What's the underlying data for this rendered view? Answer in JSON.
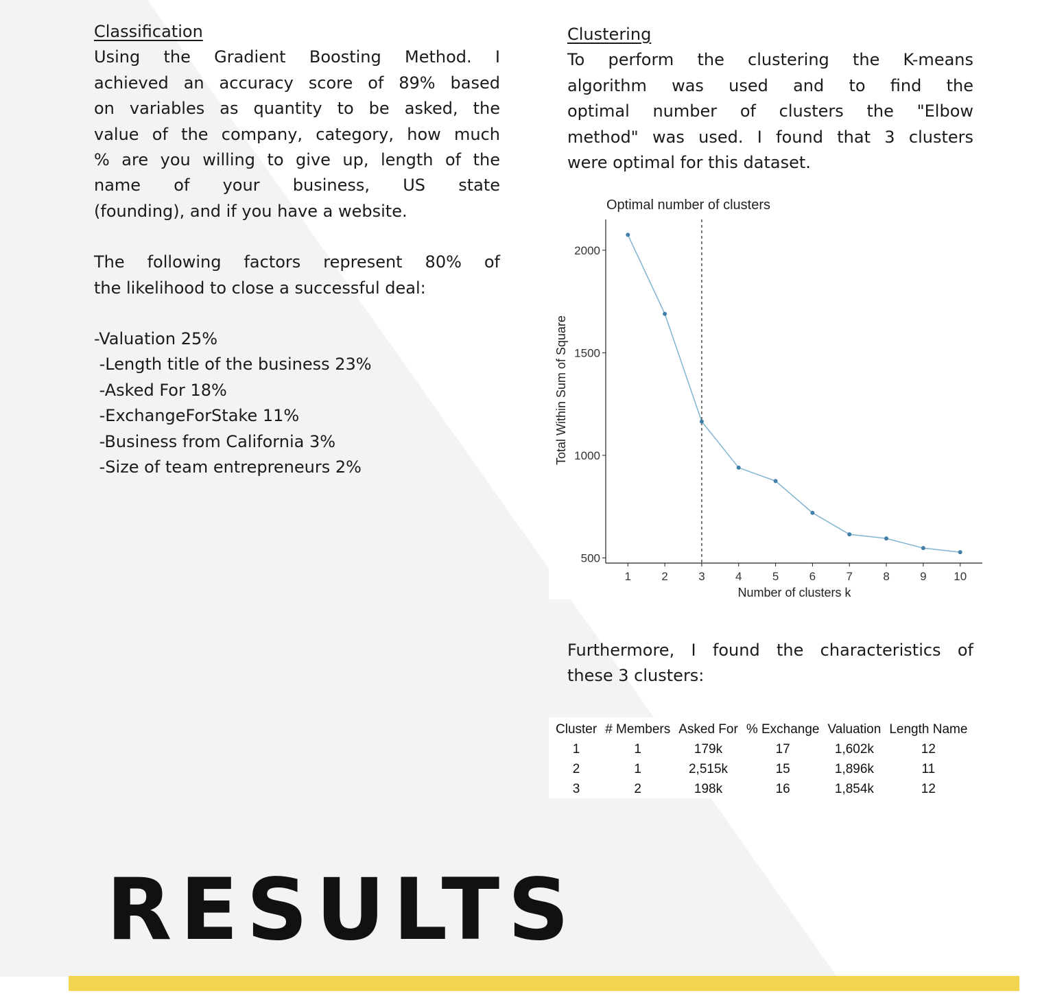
{
  "classification": {
    "heading": "Classification",
    "lines": [
      "Using the Gradient Boosting Method. I",
      "achieved an accuracy score of 89% based",
      "on variables as quantity to be asked, the",
      "value of the company, category, how much",
      "% are you willing to give up, length of the",
      "name of your business, US state"
    ],
    "last_line": "(founding), and if you have a website.",
    "factors_intro_line1": "The following factors  represent 80% of",
    "factors_intro_line2": "the likelihood to close a successful deal:",
    "factors": [
      "-Valuation 25%",
      " -Length title of the business 23%",
      " -Asked For 18%",
      " -ExchangeForStake 11%",
      " -Business from California 3%",
      " -Size of team entrepreneurs 2%"
    ]
  },
  "clustering": {
    "heading": "Clustering",
    "lines": [
      "To perform the clustering the K-means",
      "algorithm was used and to find the",
      "optimal number of clusters the \"Elbow",
      "method\" was used. I found that 3 clusters"
    ],
    "last_line": "were optimal for this dataset.",
    "furthermore_line1": "Furthermore, I found the characteristics of",
    "furthermore_line2": "these 3 clusters:"
  },
  "chart_data": {
    "type": "line",
    "title": "Optimal number of clusters",
    "xlabel": "Number of clusters k",
    "ylabel": "Total Within Sum of Square",
    "x": [
      1,
      2,
      3,
      4,
      5,
      6,
      7,
      8,
      9,
      10
    ],
    "values": [
      2075,
      1690,
      1165,
      940,
      875,
      720,
      615,
      595,
      548,
      528
    ],
    "xticks": [
      "1",
      "2",
      "3",
      "4",
      "5",
      "6",
      "7",
      "8",
      "9",
      "10"
    ],
    "yticks": [
      500,
      1000,
      1500,
      2000
    ],
    "ylim": [
      475,
      2150
    ],
    "xlim": [
      0.4,
      10.6
    ],
    "vline_x": 3,
    "line_color": "#7fb3cf",
    "point_color": "#3f7fa8"
  },
  "cluster_table": {
    "headers": [
      "Cluster",
      "# Members",
      "Asked For",
      "% Exchange",
      "Valuation",
      "Length Name"
    ],
    "rows": [
      [
        "1",
        "1",
        "179k",
        "17",
        "1,602k",
        "12"
      ],
      [
        "2",
        "1",
        "2,515k",
        "15",
        "1,896k",
        "11"
      ],
      [
        "3",
        "2",
        "198k",
        "16",
        "1,854k",
        "12"
      ]
    ]
  },
  "results_title": "RESULTS",
  "colors": {
    "accent_bar": "#f2d44e",
    "background_shape": "#f3f3f3"
  }
}
